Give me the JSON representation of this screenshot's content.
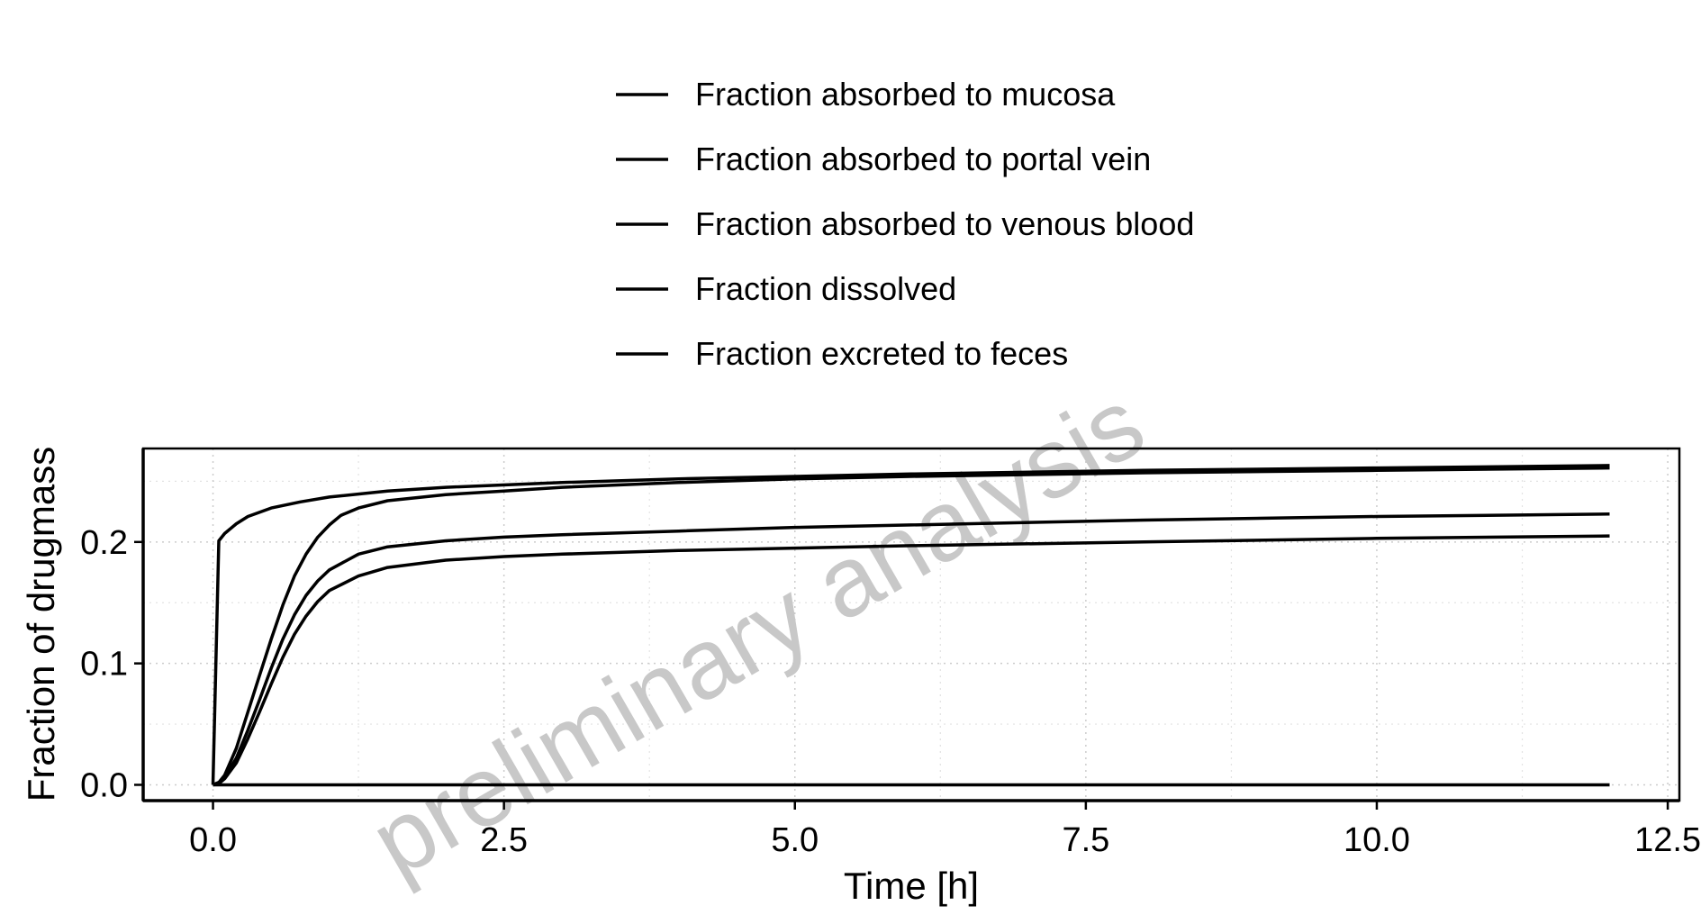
{
  "chart_data": {
    "type": "line",
    "xlabel": "Time [h]",
    "ylabel": "Fraction of drugmass",
    "xlim": [
      -0.6,
      12.6
    ],
    "ylim": [
      -0.013,
      0.277
    ],
    "x_ticks": [
      0.0,
      2.5,
      5.0,
      7.5,
      10.0,
      12.5
    ],
    "x_tick_labels": [
      "0.0",
      "2.5",
      "5.0",
      "7.5",
      "10.0",
      "12.5"
    ],
    "y_ticks": [
      0.0,
      0.1,
      0.2
    ],
    "y_tick_labels": [
      "0.0",
      "0.1",
      "0.2"
    ],
    "grid": true,
    "legend_position": "top",
    "watermark": "preliminary analysis",
    "series": [
      {
        "name": "Fraction absorbed to mucosa",
        "color": "#000000",
        "x": [
          0,
          0.05,
          0.1,
          0.2,
          0.3,
          0.5,
          0.75,
          1.0,
          1.5,
          2.0,
          3,
          4,
          5,
          6,
          8,
          10,
          12
        ],
        "y": [
          0,
          0.201,
          0.207,
          0.215,
          0.221,
          0.228,
          0.233,
          0.237,
          0.242,
          0.245,
          0.249,
          0.252,
          0.254,
          0.256,
          0.259,
          0.261,
          0.263
        ]
      },
      {
        "name": "Fraction absorbed to portal vein",
        "color": "#000000",
        "x": [
          0,
          0.05,
          0.1,
          0.2,
          0.3,
          0.4,
          0.5,
          0.6,
          0.7,
          0.8,
          0.9,
          1.0,
          1.1,
          1.25,
          1.5,
          2.0,
          2.5,
          3,
          4,
          5,
          6,
          8,
          10,
          12
        ],
        "y": [
          0,
          0.002,
          0.008,
          0.03,
          0.06,
          0.09,
          0.12,
          0.148,
          0.172,
          0.19,
          0.204,
          0.214,
          0.222,
          0.228,
          0.234,
          0.239,
          0.242,
          0.245,
          0.249,
          0.252,
          0.254,
          0.257,
          0.259,
          0.261
        ]
      },
      {
        "name": "Fraction absorbed to venous blood",
        "color": "#000000",
        "x": [
          0,
          0.05,
          0.1,
          0.2,
          0.3,
          0.4,
          0.5,
          0.6,
          0.7,
          0.8,
          0.9,
          1.0,
          1.25,
          1.5,
          2.0,
          2.5,
          3,
          4,
          5,
          6,
          8,
          10,
          12
        ],
        "y": [
          0,
          0.002,
          0.006,
          0.022,
          0.045,
          0.07,
          0.096,
          0.12,
          0.14,
          0.156,
          0.168,
          0.177,
          0.19,
          0.196,
          0.201,
          0.204,
          0.206,
          0.209,
          0.212,
          0.214,
          0.218,
          0.221,
          0.223
        ]
      },
      {
        "name": "Fraction dissolved",
        "color": "#000000",
        "x": [
          0,
          12
        ],
        "y": [
          0,
          0
        ]
      },
      {
        "name": "Fraction excreted to feces",
        "color": "#000000",
        "x": [
          0,
          0.05,
          0.1,
          0.2,
          0.3,
          0.4,
          0.5,
          0.6,
          0.7,
          0.8,
          0.9,
          1.0,
          1.25,
          1.5,
          2.0,
          2.5,
          3,
          4,
          5,
          6,
          8,
          10,
          12
        ],
        "y": [
          0,
          0.001,
          0.005,
          0.018,
          0.038,
          0.06,
          0.083,
          0.105,
          0.124,
          0.139,
          0.151,
          0.16,
          0.172,
          0.179,
          0.185,
          0.188,
          0.19,
          0.193,
          0.195,
          0.197,
          0.2,
          0.203,
          0.205
        ]
      }
    ]
  }
}
